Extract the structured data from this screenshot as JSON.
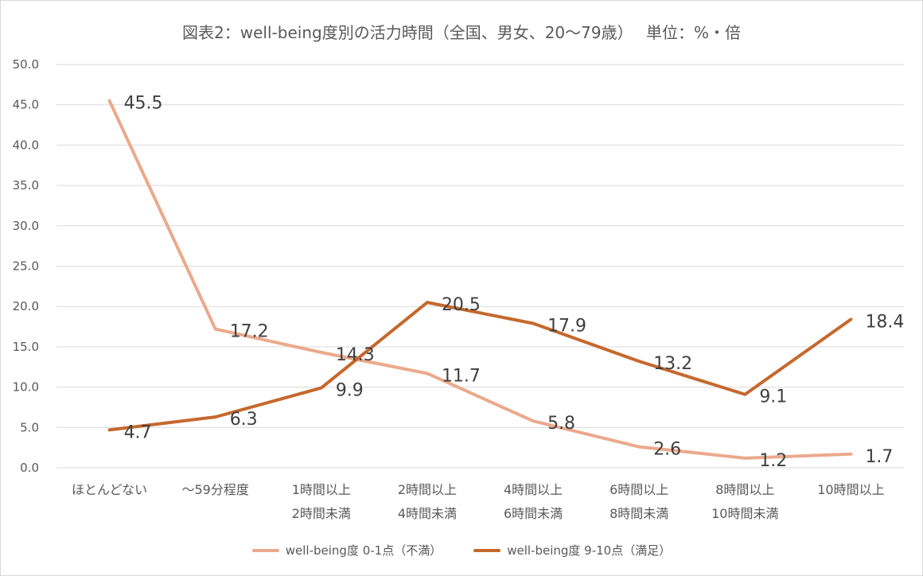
{
  "chart_data": {
    "type": "line",
    "title": "図表2：well-being度別の活力時間（全国、男女、20〜79歳）　 単位：%・倍",
    "categories": [
      [
        "ほとんどない"
      ],
      [
        "〜59分程度"
      ],
      [
        "1時間以上",
        "2時間未満"
      ],
      [
        "2時間以上",
        "4時間未満"
      ],
      [
        "4時間以上",
        "6時間未満"
      ],
      [
        "6時間以上",
        "8時間未満"
      ],
      [
        "8時間以上",
        "10時間未満"
      ],
      [
        "10時間以上"
      ]
    ],
    "ylim": [
      0,
      50
    ],
    "yticks": [
      "0.0",
      "5.0",
      "10.0",
      "15.0",
      "20.0",
      "25.0",
      "30.0",
      "35.0",
      "40.0",
      "45.0",
      "50.0"
    ],
    "grid": true,
    "legend_position": "bottom",
    "series": [
      {
        "name": "well-being度 0-1点（不満）",
        "color": "#eba98c",
        "values": [
          45.5,
          17.2,
          14.3,
          11.7,
          5.8,
          2.6,
          1.2,
          1.7
        ],
        "labels": [
          "45.5",
          "17.2",
          "14.3",
          "11.7",
          "5.8",
          "2.6",
          "1.2",
          "1.7"
        ]
      },
      {
        "name": "well-being度 9-10点（満足）",
        "color": "#c5682d",
        "values": [
          4.7,
          6.3,
          9.9,
          20.5,
          17.9,
          13.2,
          9.1,
          18.4
        ],
        "labels": [
          "4.7",
          "6.3",
          "9.9",
          "20.5",
          "17.9",
          "13.2",
          "9.1",
          "18.4"
        ]
      }
    ]
  }
}
